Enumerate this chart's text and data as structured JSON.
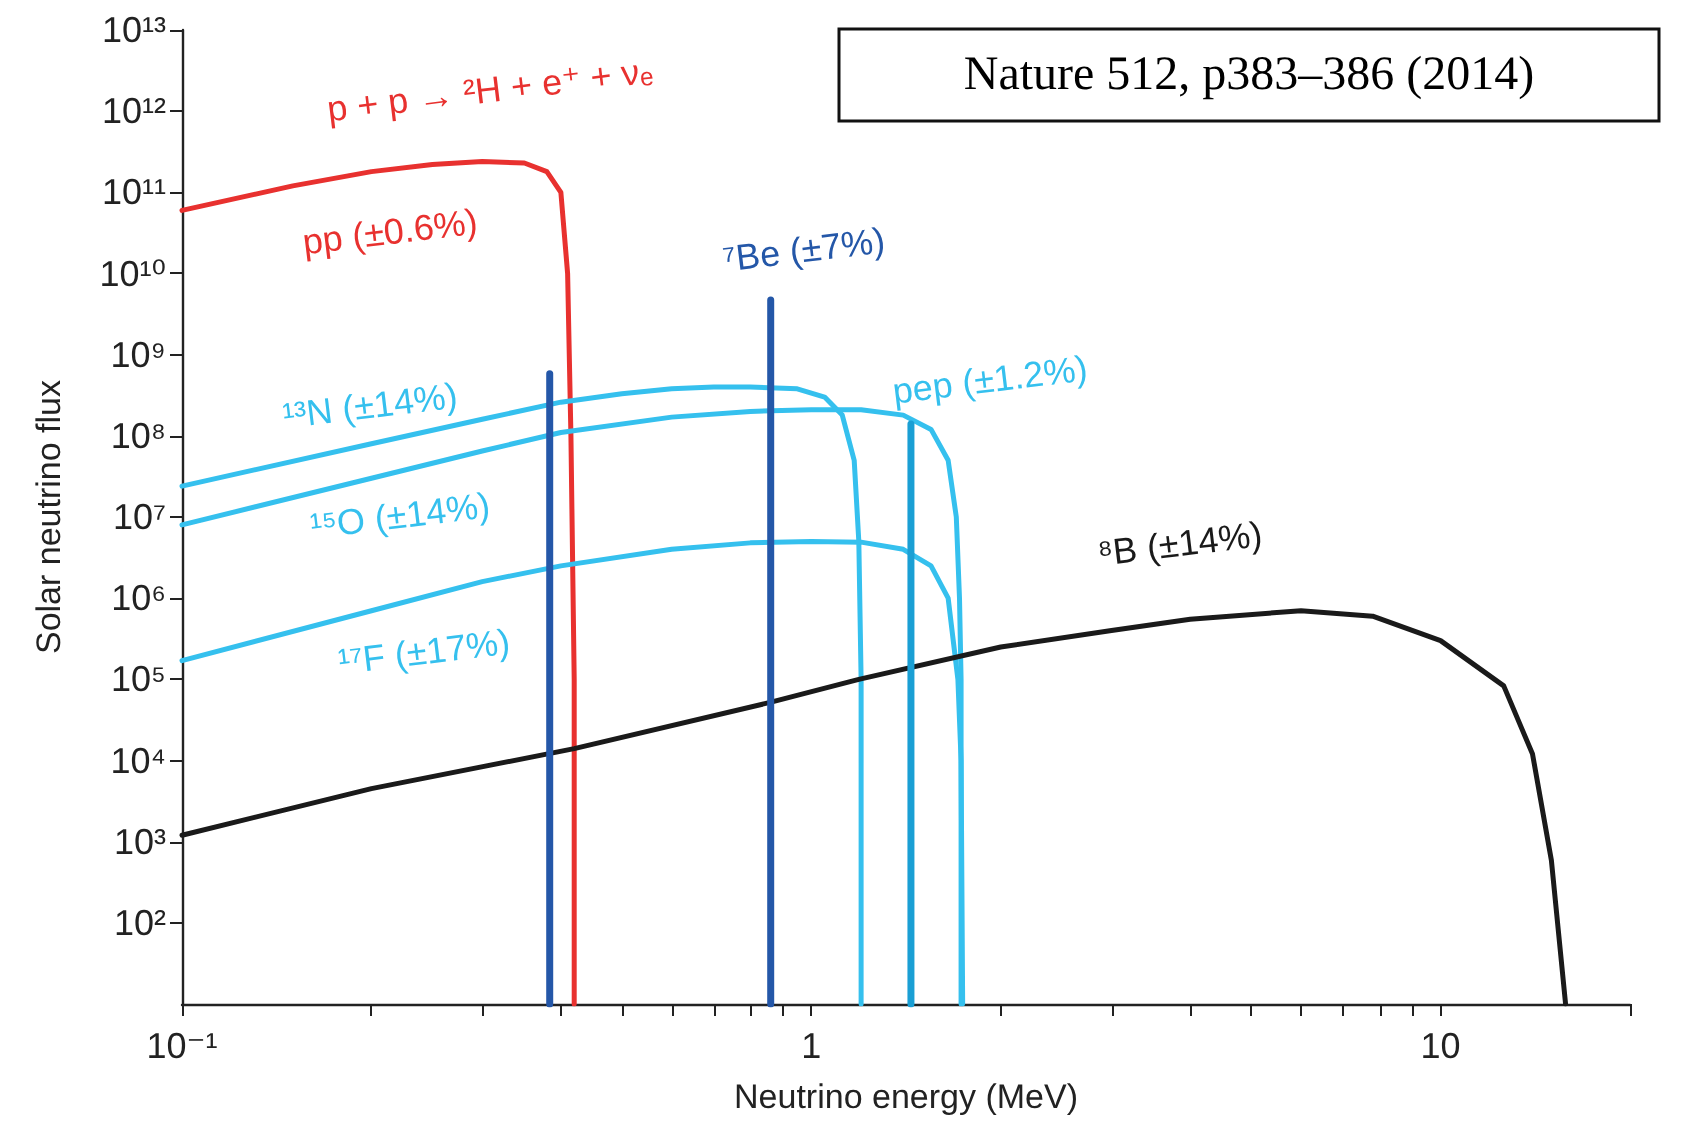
{
  "chart_data": {
    "type": "line",
    "xlabel": "Neutrino energy (MeV)",
    "ylabel": "Solar neutrino flux",
    "log": "xy",
    "grid": false,
    "marker": "none",
    "line_style": "solid",
    "xlim": [
      0.1,
      20
    ],
    "ylim": [
      10,
      10000000000000.0
    ],
    "xticks": [
      {
        "value": 0.1,
        "label": "10⁻¹"
      },
      {
        "value": 0.2,
        "label": null
      },
      {
        "value": 0.3,
        "label": null
      },
      {
        "value": 0.4,
        "label": null
      },
      {
        "value": 0.5,
        "label": null
      },
      {
        "value": 0.6,
        "label": null
      },
      {
        "value": 0.7,
        "label": null
      },
      {
        "value": 0.8,
        "label": null
      },
      {
        "value": 0.9,
        "label": null
      },
      1,
      {
        "value": 2,
        "label": null
      },
      {
        "value": 3,
        "label": null
      },
      {
        "value": 4,
        "label": null
      },
      {
        "value": 5,
        "label": null
      },
      {
        "value": 6,
        "label": null
      },
      {
        "value": 7,
        "label": null
      },
      {
        "value": 8,
        "label": null
      },
      {
        "value": 9,
        "label": null
      },
      10,
      {
        "value": 20,
        "label": null
      }
    ],
    "yticks": [
      {
        "value": 100,
        "label": "10²"
      },
      {
        "value": 1000,
        "label": "10³"
      },
      {
        "value": 10000,
        "label": "10⁴"
      },
      {
        "value": 100000,
        "label": "10⁵"
      },
      {
        "value": 1000000,
        "label": "10⁶"
      },
      {
        "value": 10000000,
        "label": "10⁷"
      },
      {
        "value": 100000000,
        "label": "10⁸"
      },
      {
        "value": 1000000000,
        "label": "10⁹"
      },
      {
        "value": 10000000000,
        "label": "10¹⁰"
      },
      {
        "value": 100000000000,
        "label": "10¹¹"
      },
      {
        "value": 1000000000000,
        "label": "10¹²"
      },
      {
        "value": 10000000000000,
        "label": "10¹³"
      }
    ],
    "series": [
      {
        "color": "#e8312f",
        "x": [
          0.1,
          0.15,
          0.2,
          0.25,
          0.3,
          0.35,
          0.38,
          0.4,
          0.41,
          0.415,
          0.42,
          0.42
        ],
        "values": [
          60000000000.0,
          120000000000.0,
          180000000000.0,
          220000000000.0,
          240000000000.0,
          230000000000.0,
          180000000000.0,
          100000000000.0,
          10000000000.0,
          100000000.0,
          100000.0,
          10
        ]
      },
      {
        "color": "#35c0ee",
        "x": [
          0.1,
          0.2,
          0.3,
          0.4,
          0.5,
          0.6,
          0.7,
          0.8,
          0.95,
          1.05,
          1.12,
          1.17,
          1.19,
          1.2,
          1.2
        ],
        "values": [
          24000000.0,
          80000000.0,
          160000000.0,
          260000000.0,
          330000000.0,
          380000000.0,
          400000000.0,
          400000000.0,
          380000000.0,
          300000000.0,
          180000000.0,
          50000000.0,
          5000000.0,
          100000.0,
          10
        ]
      },
      {
        "color": "#35c0ee",
        "x": [
          0.1,
          0.2,
          0.3,
          0.4,
          0.6,
          0.8,
          1.0,
          1.2,
          1.4,
          1.55,
          1.65,
          1.7,
          1.72,
          1.73,
          1.73
        ],
        "values": [
          8000000.0,
          30000000.0,
          65000000.0,
          110000000.0,
          170000000.0,
          200000000.0,
          210000000.0,
          210000000.0,
          180000000.0,
          120000000.0,
          50000000.0,
          10000000.0,
          1000000.0,
          100000.0,
          10
        ]
      },
      {
        "color": "#35c0ee",
        "x": [
          0.1,
          0.2,
          0.3,
          0.4,
          0.6,
          0.8,
          1.0,
          1.2,
          1.4,
          1.55,
          1.65,
          1.71,
          1.73,
          1.74
        ],
        "values": [
          170000.0,
          700000.0,
          1600000.0,
          2500000.0,
          4000000.0,
          4800000.0,
          5000000.0,
          4900000.0,
          4000000.0,
          2500000.0,
          1000000.0,
          100000.0,
          10000.0,
          10
        ]
      },
      {
        "color": "#1a1a1a",
        "x": [
          0.1,
          0.2,
          0.42,
          0.86,
          1.19,
          2,
          3,
          4,
          6,
          7.8,
          10,
          12.6,
          14,
          15,
          15.8
        ],
        "values": [
          1200,
          4500,
          14000,
          52000,
          100000,
          250000,
          400000,
          550000,
          700000,
          600000,
          300000,
          83000,
          12000,
          590,
          10
        ]
      },
      {
        "color": "#2457a8",
        "x": [
          0.384,
          0.384
        ],
        "values": [
          10,
          580000000.0
        ]
      },
      {
        "color": "#2457a8",
        "x": [
          0.862,
          0.862
        ],
        "values": [
          10,
          4700000000.0
        ]
      },
      {
        "color": "#1a9fd4",
        "x": [
          1.44,
          1.44
        ],
        "values": [
          10,
          140000000.0
        ]
      }
    ],
    "annotations": [
      "Nature 512, p383–386 (2014)",
      "p + p → ²H + e⁺ + νₑ",
      "pp (±0.6%)",
      "⁷Be (±7%)",
      "pep (±1.2%)",
      "¹³N (±14%)",
      "¹⁵O (±14%)",
      "¹⁷F (±17%)",
      "⁸B (±14%)"
    ]
  }
}
